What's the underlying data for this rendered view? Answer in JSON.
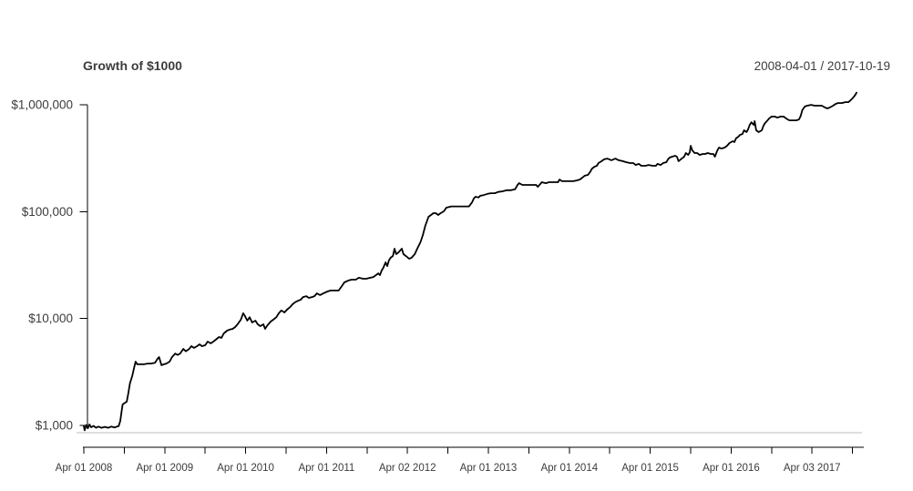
{
  "chart_data": {
    "type": "line",
    "title": "Growth of $1000",
    "date_range": "2008-04-01 / 2017-10-19",
    "legend": "none",
    "grid": "single horizontal baseline at starting value",
    "y_axis": {
      "scale": "log",
      "ylim": [
        870,
        1350000
      ],
      "ticks": [
        {
          "value": 1000,
          "label": "$1,000"
        },
        {
          "value": 10000,
          "label": "$10,000"
        },
        {
          "value": 100000,
          "label": "$100,000"
        },
        {
          "value": 1000000,
          "label": "$1,000,000"
        }
      ]
    },
    "x_axis": {
      "unit": "years since 2008-04-01",
      "range": [
        0,
        9.55
      ],
      "minor_tick_interval_years": 0.5,
      "minor_tick_count": 20,
      "year_labels": [
        "Apr 01 2008",
        "Apr 01 2009",
        "Apr 01 2010",
        "Apr 01 2011",
        "Apr 02 2012",
        "Apr 01 2013",
        "Apr 01 2014",
        "Apr 01 2015",
        "Apr 01 2016",
        "Apr 03 2017"
      ]
    },
    "series": [
      {
        "name": "Growth of $1000",
        "color": "#000000",
        "points": [
          [
            0,
            980
          ],
          [
            0.01,
            900
          ],
          [
            0.03,
            1010
          ],
          [
            0.05,
            940
          ],
          [
            0.07,
            1020
          ],
          [
            0.09,
            960
          ],
          [
            0.12,
            990
          ],
          [
            0.15,
            950
          ],
          [
            0.18,
            975
          ],
          [
            0.22,
            950
          ],
          [
            0.26,
            970
          ],
          [
            0.3,
            950
          ],
          [
            0.34,
            975
          ],
          [
            0.38,
            955
          ],
          [
            0.41,
            975
          ],
          [
            0.43,
            985
          ],
          [
            0.45,
            1100
          ],
          [
            0.47,
            1400
          ],
          [
            0.48,
            1570
          ],
          [
            0.51,
            1630
          ],
          [
            0.53,
            1670
          ],
          [
            0.55,
            1990
          ],
          [
            0.57,
            2470
          ],
          [
            0.6,
            2940
          ],
          [
            0.62,
            3440
          ],
          [
            0.64,
            3950
          ],
          [
            0.66,
            3730
          ],
          [
            0.7,
            3730
          ],
          [
            0.74,
            3730
          ],
          [
            0.79,
            3790
          ],
          [
            0.83,
            3790
          ],
          [
            0.88,
            3850
          ],
          [
            0.91,
            4190
          ],
          [
            0.93,
            4360
          ],
          [
            0.96,
            3660
          ],
          [
            0.99,
            3730
          ],
          [
            1.02,
            3790
          ],
          [
            1.06,
            3950
          ],
          [
            1.09,
            4360
          ],
          [
            1.13,
            4710
          ],
          [
            1.16,
            4570
          ],
          [
            1.19,
            4710
          ],
          [
            1.23,
            5200
          ],
          [
            1.26,
            4940
          ],
          [
            1.3,
            5170
          ],
          [
            1.33,
            5520
          ],
          [
            1.36,
            5320
          ],
          [
            1.4,
            5520
          ],
          [
            1.43,
            5740
          ],
          [
            1.46,
            5520
          ],
          [
            1.5,
            5630
          ],
          [
            1.53,
            6090
          ],
          [
            1.57,
            5860
          ],
          [
            1.6,
            6090
          ],
          [
            1.63,
            6330
          ],
          [
            1.67,
            6710
          ],
          [
            1.7,
            6600
          ],
          [
            1.73,
            7260
          ],
          [
            1.77,
            7700
          ],
          [
            1.8,
            7870
          ],
          [
            1.84,
            8010
          ],
          [
            1.87,
            8330
          ],
          [
            1.9,
            8830
          ],
          [
            1.94,
            9750
          ],
          [
            1.97,
            11200
          ],
          [
            1.99,
            10600
          ],
          [
            2.02,
            9560
          ],
          [
            2.05,
            10300
          ],
          [
            2.08,
            9190
          ],
          [
            2.12,
            9560
          ],
          [
            2.15,
            8830
          ],
          [
            2.18,
            8490
          ],
          [
            2.22,
            8830
          ],
          [
            2.24,
            8010
          ],
          [
            2.27,
            8660
          ],
          [
            2.31,
            9370
          ],
          [
            2.34,
            9750
          ],
          [
            2.38,
            10300
          ],
          [
            2.41,
            11200
          ],
          [
            2.44,
            11900
          ],
          [
            2.48,
            11400
          ],
          [
            2.51,
            12100
          ],
          [
            2.55,
            12800
          ],
          [
            2.58,
            13600
          ],
          [
            2.61,
            14200
          ],
          [
            2.65,
            14700
          ],
          [
            2.68,
            15000
          ],
          [
            2.71,
            15900
          ],
          [
            2.75,
            16200
          ],
          [
            2.78,
            15600
          ],
          [
            2.82,
            15900
          ],
          [
            2.85,
            16200
          ],
          [
            2.88,
            17200
          ],
          [
            2.92,
            16600
          ],
          [
            2.96,
            17200
          ],
          [
            3.01,
            17900
          ],
          [
            3.05,
            18300
          ],
          [
            3.11,
            18300
          ],
          [
            3.15,
            18300
          ],
          [
            3.19,
            20200
          ],
          [
            3.22,
            21800
          ],
          [
            3.27,
            22700
          ],
          [
            3.31,
            23100
          ],
          [
            3.36,
            23100
          ],
          [
            3.4,
            24100
          ],
          [
            3.45,
            23600
          ],
          [
            3.49,
            23600
          ],
          [
            3.54,
            24100
          ],
          [
            3.58,
            24500
          ],
          [
            3.61,
            25500
          ],
          [
            3.64,
            26500
          ],
          [
            3.66,
            25500
          ],
          [
            3.68,
            28100
          ],
          [
            3.7,
            29800
          ],
          [
            3.73,
            33600
          ],
          [
            3.75,
            31000
          ],
          [
            3.77,
            34900
          ],
          [
            3.79,
            37000
          ],
          [
            3.82,
            38500
          ],
          [
            3.84,
            45100
          ],
          [
            3.86,
            40100
          ],
          [
            3.89,
            41700
          ],
          [
            3.91,
            43300
          ],
          [
            3.93,
            45100
          ],
          [
            3.95,
            40100
          ],
          [
            3.99,
            38000
          ],
          [
            4.02,
            36300
          ],
          [
            4.05,
            37000
          ],
          [
            4.09,
            40100
          ],
          [
            4.12,
            45100
          ],
          [
            4.16,
            51700
          ],
          [
            4.19,
            60500
          ],
          [
            4.22,
            73600
          ],
          [
            4.26,
            89600
          ],
          [
            4.29,
            93200
          ],
          [
            4.32,
            96900
          ],
          [
            4.35,
            96900
          ],
          [
            4.38,
            93200
          ],
          [
            4.41,
            96900
          ],
          [
            4.45,
            101000
          ],
          [
            4.48,
            109000
          ],
          [
            4.54,
            112000
          ],
          [
            4.63,
            112000
          ],
          [
            4.72,
            112000
          ],
          [
            4.76,
            112000
          ],
          [
            4.8,
            123000
          ],
          [
            4.82,
            133000
          ],
          [
            4.84,
            138000
          ],
          [
            4.88,
            136000
          ],
          [
            4.9,
            141000
          ],
          [
            4.94,
            143000
          ],
          [
            4.99,
            147000
          ],
          [
            5.03,
            149000
          ],
          [
            5.08,
            149000
          ],
          [
            5.12,
            153000
          ],
          [
            5.17,
            155000
          ],
          [
            5.23,
            159000
          ],
          [
            5.28,
            159000
          ],
          [
            5.33,
            162000
          ],
          [
            5.36,
            178000
          ],
          [
            5.38,
            185000
          ],
          [
            5.42,
            178000
          ],
          [
            5.47,
            178000
          ],
          [
            5.53,
            178000
          ],
          [
            5.59,
            178000
          ],
          [
            5.61,
            171000
          ],
          [
            5.64,
            181000
          ],
          [
            5.66,
            189000
          ],
          [
            5.71,
            185000
          ],
          [
            5.75,
            189000
          ],
          [
            5.81,
            189000
          ],
          [
            5.86,
            189000
          ],
          [
            5.88,
            200000
          ],
          [
            5.91,
            193000
          ],
          [
            5.96,
            193000
          ],
          [
            6,
            193000
          ],
          [
            6.05,
            193000
          ],
          [
            6.09,
            196000
          ],
          [
            6.13,
            200000
          ],
          [
            6.16,
            208000
          ],
          [
            6.19,
            217000
          ],
          [
            6.23,
            221000
          ],
          [
            6.26,
            237000
          ],
          [
            6.28,
            253000
          ],
          [
            6.31,
            263000
          ],
          [
            6.34,
            269000
          ],
          [
            6.36,
            285000
          ],
          [
            6.4,
            297000
          ],
          [
            6.43,
            309000
          ],
          [
            6.47,
            314000
          ],
          [
            6.52,
            303000
          ],
          [
            6.57,
            314000
          ],
          [
            6.61,
            303000
          ],
          [
            6.66,
            297000
          ],
          [
            6.7,
            291000
          ],
          [
            6.75,
            285000
          ],
          [
            6.79,
            285000
          ],
          [
            6.82,
            274000
          ],
          [
            6.86,
            280000
          ],
          [
            6.89,
            269000
          ],
          [
            6.94,
            269000
          ],
          [
            6.98,
            274000
          ],
          [
            7.03,
            269000
          ],
          [
            7.07,
            269000
          ],
          [
            7.09,
            280000
          ],
          [
            7.13,
            274000
          ],
          [
            7.16,
            285000
          ],
          [
            7.2,
            291000
          ],
          [
            7.22,
            309000
          ],
          [
            7.24,
            321000
          ],
          [
            7.27,
            327000
          ],
          [
            7.31,
            334000
          ],
          [
            7.33,
            327000
          ],
          [
            7.35,
            297000
          ],
          [
            7.39,
            314000
          ],
          [
            7.42,
            327000
          ],
          [
            7.44,
            354000
          ],
          [
            7.47,
            340000
          ],
          [
            7.49,
            361000
          ],
          [
            7.5,
            414000
          ],
          [
            7.52,
            375000
          ],
          [
            7.55,
            354000
          ],
          [
            7.58,
            354000
          ],
          [
            7.61,
            340000
          ],
          [
            7.65,
            347000
          ],
          [
            7.68,
            347000
          ],
          [
            7.71,
            354000
          ],
          [
            7.75,
            347000
          ],
          [
            7.78,
            347000
          ],
          [
            7.8,
            327000
          ],
          [
            7.83,
            375000
          ],
          [
            7.85,
            398000
          ],
          [
            7.88,
            390000
          ],
          [
            7.92,
            398000
          ],
          [
            7.95,
            414000
          ],
          [
            7.98,
            439000
          ],
          [
            8.02,
            457000
          ],
          [
            8.04,
            448000
          ],
          [
            8.06,
            485000
          ],
          [
            8.09,
            504000
          ],
          [
            8.11,
            524000
          ],
          [
            8.14,
            533000
          ],
          [
            8.16,
            578000
          ],
          [
            8.19,
            556000
          ],
          [
            8.21,
            590000
          ],
          [
            8.23,
            649000
          ],
          [
            8.25,
            688000
          ],
          [
            8.28,
            649000
          ],
          [
            8.29,
            704000
          ],
          [
            8.31,
            578000
          ],
          [
            8.34,
            556000
          ],
          [
            8.38,
            578000
          ],
          [
            8.4,
            638000
          ],
          [
            8.42,
            677000
          ],
          [
            8.45,
            716000
          ],
          [
            8.47,
            745000
          ],
          [
            8.5,
            776000
          ],
          [
            8.54,
            776000
          ],
          [
            8.57,
            760000
          ],
          [
            8.61,
            776000
          ],
          [
            8.65,
            776000
          ],
          [
            8.68,
            745000
          ],
          [
            8.72,
            716000
          ],
          [
            8.76,
            716000
          ],
          [
            8.81,
            716000
          ],
          [
            8.84,
            732000
          ],
          [
            8.86,
            790000
          ],
          [
            8.88,
            891000
          ],
          [
            8.91,
            963000
          ],
          [
            8.94,
            982000
          ],
          [
            8.99,
            1000000
          ],
          [
            9.03,
            982000
          ],
          [
            9.08,
            982000
          ],
          [
            9.12,
            982000
          ],
          [
            9.16,
            945000
          ],
          [
            9.19,
            926000
          ],
          [
            9.22,
            945000
          ],
          [
            9.26,
            982000
          ],
          [
            9.29,
            1020000
          ],
          [
            9.32,
            1040000
          ],
          [
            9.37,
            1040000
          ],
          [
            9.41,
            1060000
          ],
          [
            9.45,
            1060000
          ],
          [
            9.48,
            1110000
          ],
          [
            9.5,
            1150000
          ],
          [
            9.52,
            1200000
          ],
          [
            9.54,
            1260000
          ],
          [
            9.55,
            1300000
          ]
        ]
      }
    ]
  },
  "colors": {
    "line": "#000000",
    "axis": "#000000",
    "tick_label": "#3c3c3c",
    "title": "#3c3c3c",
    "baseline_grid": "#bdbdbd",
    "background": "#ffffff"
  }
}
